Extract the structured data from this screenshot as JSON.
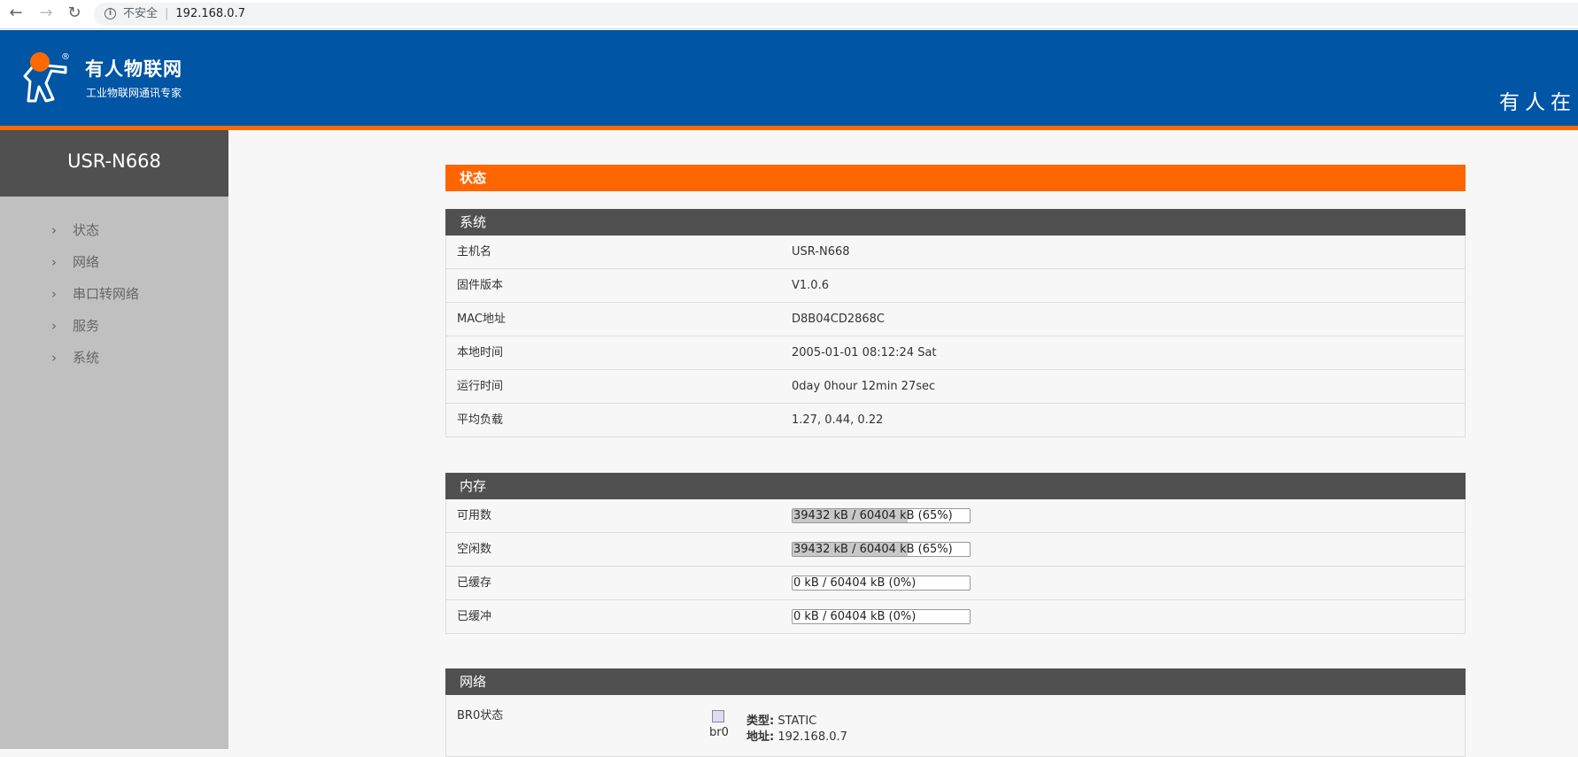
{
  "browser": {
    "security_label": "不安全",
    "url": "192.168.0.7"
  },
  "header": {
    "brand": "有人物联网",
    "tagline": "工业物联网通讯专家",
    "slogan": "有人在",
    "logo_mark": "®"
  },
  "sidebar": {
    "title": "USR-N668",
    "items": [
      {
        "label": "状态"
      },
      {
        "label": "网络"
      },
      {
        "label": "串口转网络"
      },
      {
        "label": "服务"
      },
      {
        "label": "系统"
      }
    ]
  },
  "page": {
    "title": "状态"
  },
  "system": {
    "title": "系统",
    "rows": [
      {
        "key": "主机名",
        "value": "USR-N668"
      },
      {
        "key": "固件版本",
        "value": "V1.0.6"
      },
      {
        "key": "MAC地址",
        "value": "D8B04CD2868C"
      },
      {
        "key": "本地时间",
        "value": "2005-01-01 08:12:24 Sat"
      },
      {
        "key": "运行时间",
        "value": "0day 0hour 12min 27sec"
      },
      {
        "key": "平均负载",
        "value": "1.27, 0.44, 0.22"
      }
    ]
  },
  "memory": {
    "title": "内存",
    "rows": [
      {
        "key": "可用数",
        "value": "39432 kB / 60404 kB (65%)",
        "percent": 65
      },
      {
        "key": "空闲数",
        "value": "39432 kB / 60404 kB (65%)",
        "percent": 65
      },
      {
        "key": "已缓存",
        "value": "0 kB / 60404 kB (0%)",
        "percent": 0
      },
      {
        "key": "已缓冲",
        "value": "0 kB / 60404 kB (0%)",
        "percent": 0
      }
    ]
  },
  "network": {
    "title": "网络",
    "br0": {
      "label": "BR0状态",
      "iface": "br0",
      "type_label": "类型:",
      "type": "STATIC",
      "addr_label": "地址:",
      "addr": "192.168.0.7"
    }
  },
  "colors": {
    "header_blue": "#0055a5",
    "accent_orange": "#ff6600",
    "section_dark": "#505050"
  }
}
